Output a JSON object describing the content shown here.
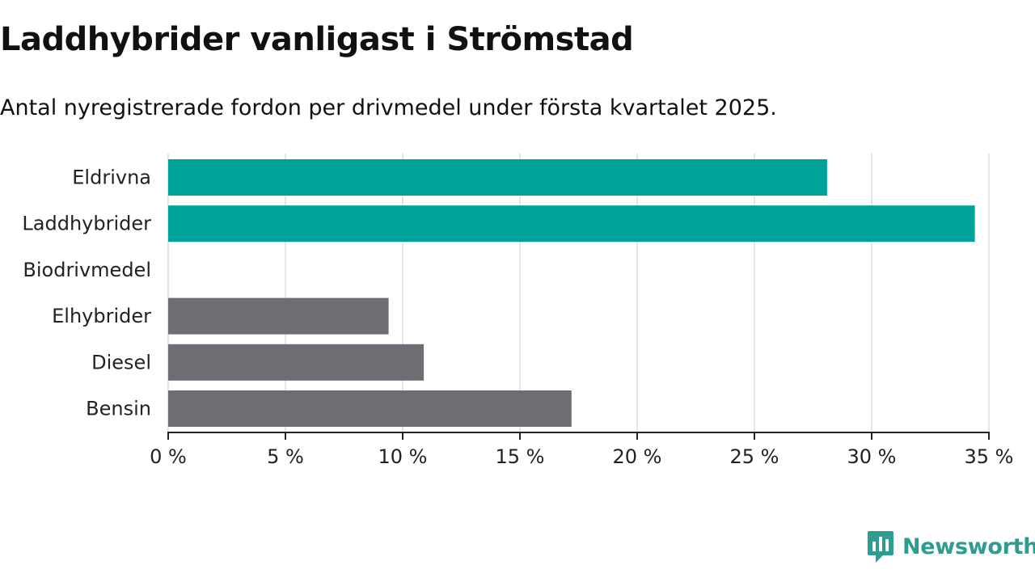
{
  "chart_data": {
    "type": "bar",
    "orientation": "horizontal",
    "title": "Laddhybrider vanligast i Strömstad",
    "subtitle": "Antal nyregistrerade fordon per drivmedel under första kvartalet 2025.",
    "categories": [
      "Eldrivna",
      "Laddhybrider",
      "Biodrivmedel",
      "Elhybrider",
      "Diesel",
      "Bensin"
    ],
    "values": [
      28.1,
      34.4,
      0,
      9.4,
      10.9,
      17.2
    ],
    "colors": [
      "#00a39a",
      "#00a39a",
      "#00a39a",
      "#6e6d73",
      "#6e6d73",
      "#6e6d73"
    ],
    "xlim": [
      0,
      35
    ],
    "xticks": [
      0,
      5,
      10,
      15,
      20,
      25,
      30,
      35
    ],
    "xtick_labels": [
      "0 %",
      "5 %",
      "10 %",
      "15 %",
      "20 %",
      "25 %",
      "30 %",
      "35 %"
    ],
    "grid": true,
    "xlabel": "",
    "ylabel": ""
  },
  "brand": {
    "name": "Newsworthy",
    "logo_icon": "newsworthy-logo-icon",
    "color": "#2e9c8f"
  }
}
